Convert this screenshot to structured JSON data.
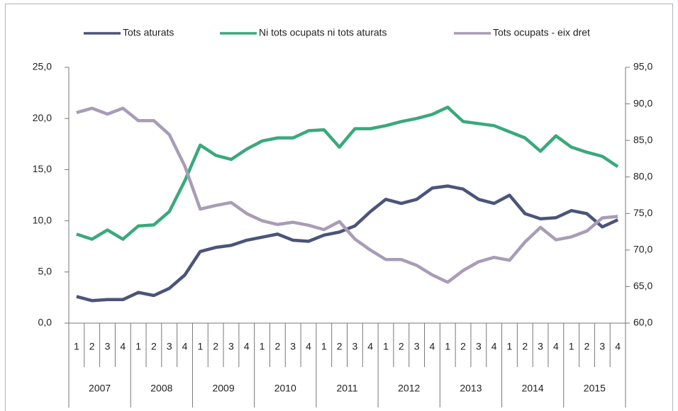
{
  "chart_data": {
    "type": "line",
    "categories": [
      "1",
      "2",
      "3",
      "4",
      "1",
      "2",
      "3",
      "4",
      "1",
      "2",
      "3",
      "4",
      "1",
      "2",
      "3",
      "4",
      "1",
      "2",
      "3",
      "4",
      "1",
      "2",
      "3",
      "4",
      "1",
      "2",
      "3",
      "4",
      "1",
      "2",
      "3",
      "4",
      "1",
      "2",
      "3",
      "4"
    ],
    "groups": [
      "2007",
      "2008",
      "2009",
      "2010",
      "2011",
      "2012",
      "2013",
      "2014",
      "2015"
    ],
    "series": [
      {
        "name": "Tots aturats",
        "color": "#4b5479",
        "values": [
          2.6,
          2.2,
          2.3,
          2.3,
          3.0,
          2.7,
          3.4,
          4.7,
          7.0,
          7.4,
          7.6,
          8.1,
          8.4,
          8.7,
          8.1,
          8.0,
          8.6,
          8.9,
          9.5,
          10.9,
          12.1,
          11.7,
          12.1,
          13.2,
          13.4,
          13.1,
          12.1,
          11.7,
          12.5,
          10.7,
          10.2,
          10.3,
          11.0,
          10.7,
          9.4,
          10.1
        ]
      },
      {
        "name": "Ni tots ocupats ni tots aturats",
        "color": "#3aa97c",
        "values": [
          8.7,
          8.2,
          9.1,
          8.2,
          9.5,
          9.6,
          10.9,
          13.9,
          17.4,
          16.4,
          16.0,
          17.0,
          17.8,
          18.1,
          18.1,
          18.8,
          18.9,
          17.2,
          19.0,
          19.0,
          19.3,
          19.7,
          20.0,
          20.4,
          21.1,
          19.7,
          19.5,
          19.3,
          18.7,
          18.1,
          16.8,
          18.3,
          17.2,
          16.7,
          16.3,
          15.3
        ]
      },
      {
        "name": "Tots ocupats - eix dret",
        "color": "#a99cb6",
        "axis": "y2",
        "values": [
          88.8,
          89.4,
          88.6,
          89.4,
          87.7,
          87.7,
          85.8,
          81.5,
          75.6,
          76.1,
          76.5,
          75.0,
          74.0,
          73.5,
          73.8,
          73.4,
          72.8,
          73.9,
          71.5,
          70.0,
          68.7,
          68.7,
          67.9,
          66.6,
          65.6,
          67.2,
          68.4,
          69.0,
          68.6,
          71.1,
          73.1,
          71.4,
          71.8,
          72.6,
          74.4,
          74.6
        ]
      }
    ],
    "ylim": [
      0,
      25
    ],
    "yticks": [
      {
        "value": 0,
        "label": "0,0"
      },
      {
        "value": 5,
        "label": "5,0"
      },
      {
        "value": 10,
        "label": "10,0"
      },
      {
        "value": 15,
        "label": "15,0"
      },
      {
        "value": 20,
        "label": "20,0"
      },
      {
        "value": 25,
        "label": "25,0"
      }
    ],
    "y2lim": [
      60,
      95
    ],
    "y2ticks": [
      {
        "value": 60,
        "label": "60,0"
      },
      {
        "value": 65,
        "label": "65,0"
      },
      {
        "value": 70,
        "label": "70,0"
      },
      {
        "value": 75,
        "label": "75,0"
      },
      {
        "value": 80,
        "label": "80,0"
      },
      {
        "value": 85,
        "label": "85,0"
      },
      {
        "value": 90,
        "label": "90,0"
      },
      {
        "value": 95,
        "label": "95,0"
      }
    ],
    "legend": "top"
  }
}
